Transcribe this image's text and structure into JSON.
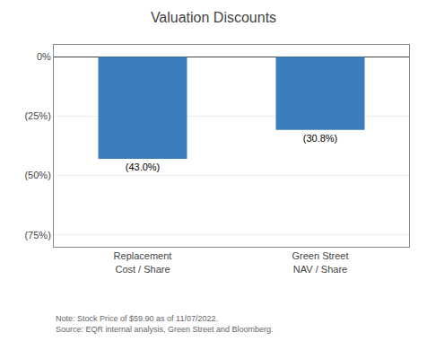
{
  "chart_data": {
    "type": "bar",
    "title": "Valuation Discounts",
    "categories": [
      "Replacement\nCost / Share",
      "Green Street\nNAV / Share"
    ],
    "values": [
      -43.0,
      -30.8
    ],
    "value_labels": [
      "(43.0%)",
      "(30.8%)"
    ],
    "data_labels": true,
    "color": "#3A7EBD",
    "ylim": [
      -80,
      5
    ],
    "yticks": [
      {
        "value": 0,
        "label": "0%"
      },
      {
        "value": -25,
        "label": "(25%)"
      },
      {
        "value": -50,
        "label": "(50%)"
      },
      {
        "value": -75,
        "label": "(75%)"
      }
    ],
    "grid": true,
    "annotations": [
      "Note: Stock Price of $59.90 as of 11/07/2022.",
      "Source: EQR internal analysis, Green Street and Bloomberg."
    ]
  }
}
